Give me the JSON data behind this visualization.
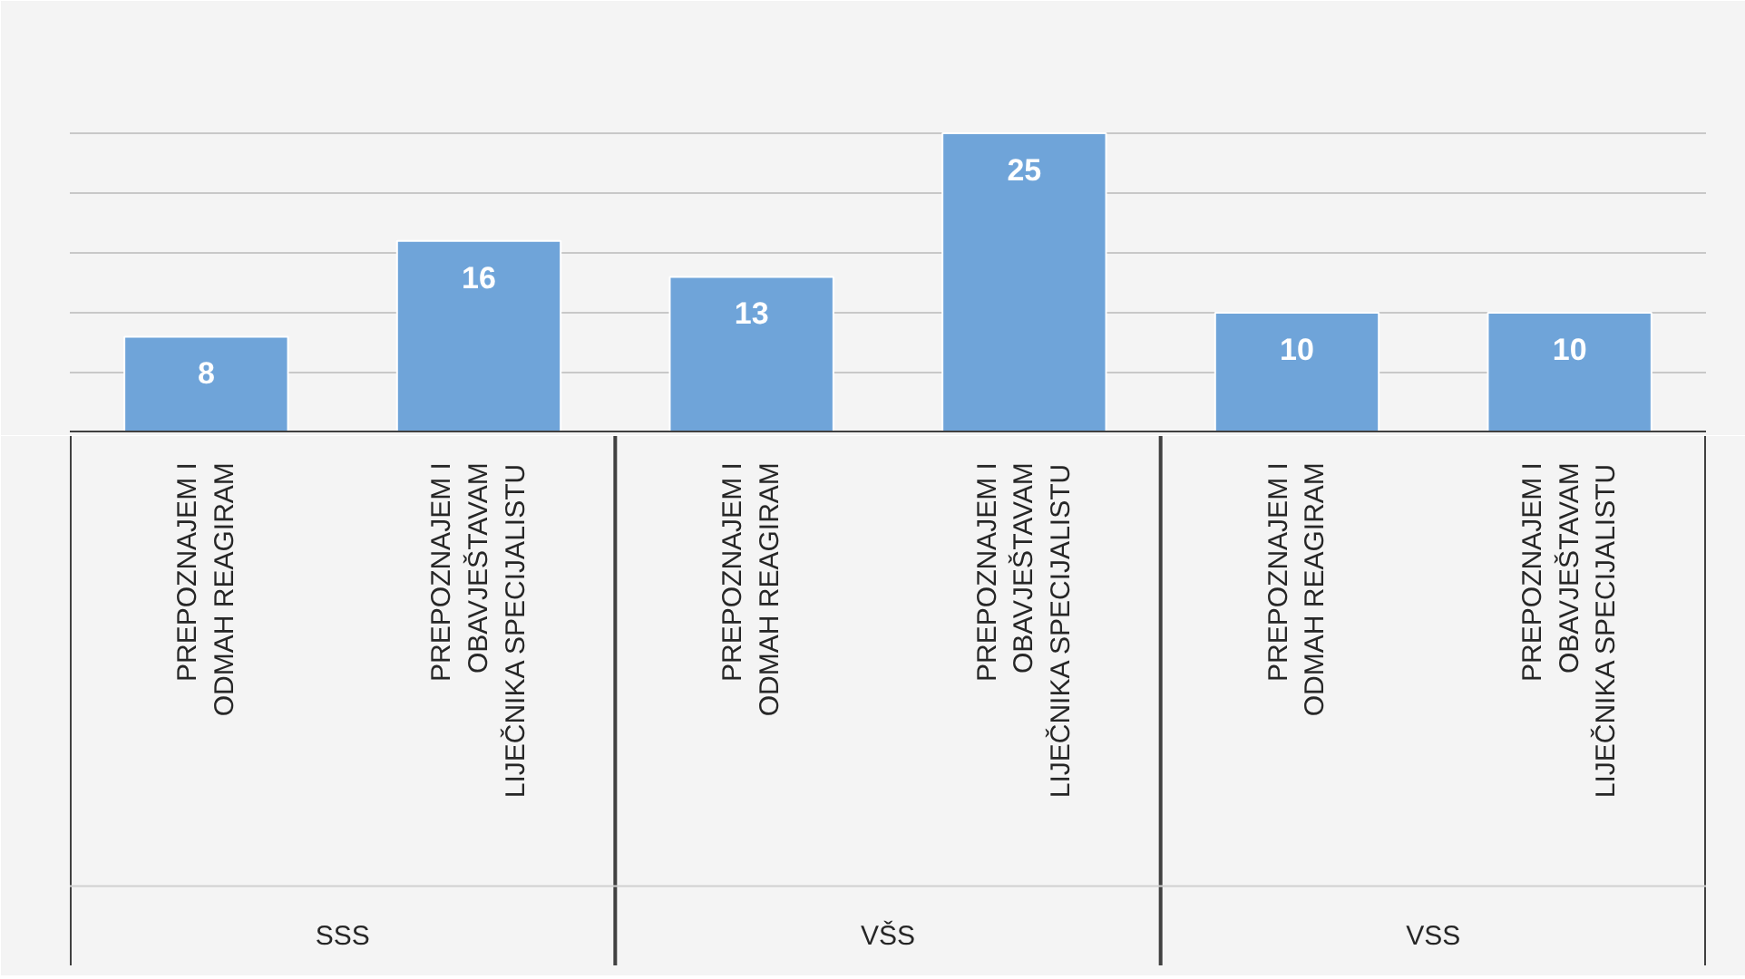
{
  "chart_data": {
    "type": "bar",
    "categories": [
      "PREPOZNAJEM I\nODMAH REAGIRAM",
      "PREPOZNAJEM I\nOBAVJEŠTAVAM\nLIJEČNIKA SPECIJALISTU",
      "PREPOZNAJEM I\nODMAH REAGIRAM",
      "PREPOZNAJEM I\nOBAVJEŠTAVAM\nLIJEČNIKA SPECIJALISTU",
      "PREPOZNAJEM I\nODMAH REAGIRAM",
      "PREPOZNAJEM I\nOBAVJEŠTAVAM\nLIJEČNIKA SPECIJALISTU"
    ],
    "values": [
      8,
      16,
      13,
      25,
      10,
      10
    ],
    "color": "#6fa4d9",
    "data_labels": true,
    "ylim": [
      0,
      30
    ],
    "yticks": [
      {
        "value": 0,
        "label": null
      },
      {
        "value": 5,
        "label": null
      },
      {
        "value": 10,
        "label": null
      },
      {
        "value": 15,
        "label": null
      },
      {
        "value": 20,
        "label": null
      },
      {
        "value": 25,
        "label": null
      },
      {
        "value": 30,
        "label": null
      }
    ],
    "tick_labels": false,
    "grid": "y",
    "annotations": [
      "SSS",
      "VŠS",
      "VSS"
    ]
  }
}
